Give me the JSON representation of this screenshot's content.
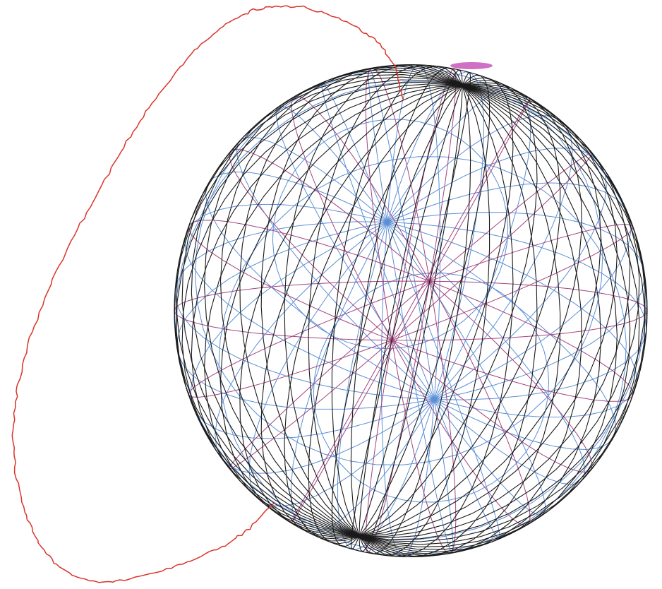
{
  "figure": {
    "kind": "wireframe-sphere-diagram",
    "meridian_count": 24,
    "blue_circle_count": 14,
    "purple_circle_count": 9,
    "colors": {
      "background": "#ffffff",
      "meridians": "#1a1a1a",
      "blue_circles": "#5b8fd6",
      "purple_circles": "#a3457f",
      "magenta_marker": "#c040b0",
      "curve": "#d9342b"
    },
    "lines": {
      "meridians_icon": "sphere-meridian-lines",
      "blue_icon": "blue-great-circle-lines",
      "purple_icon": "purple-great-circle-lines",
      "curve_icon": "red-trajectory-curve"
    }
  }
}
